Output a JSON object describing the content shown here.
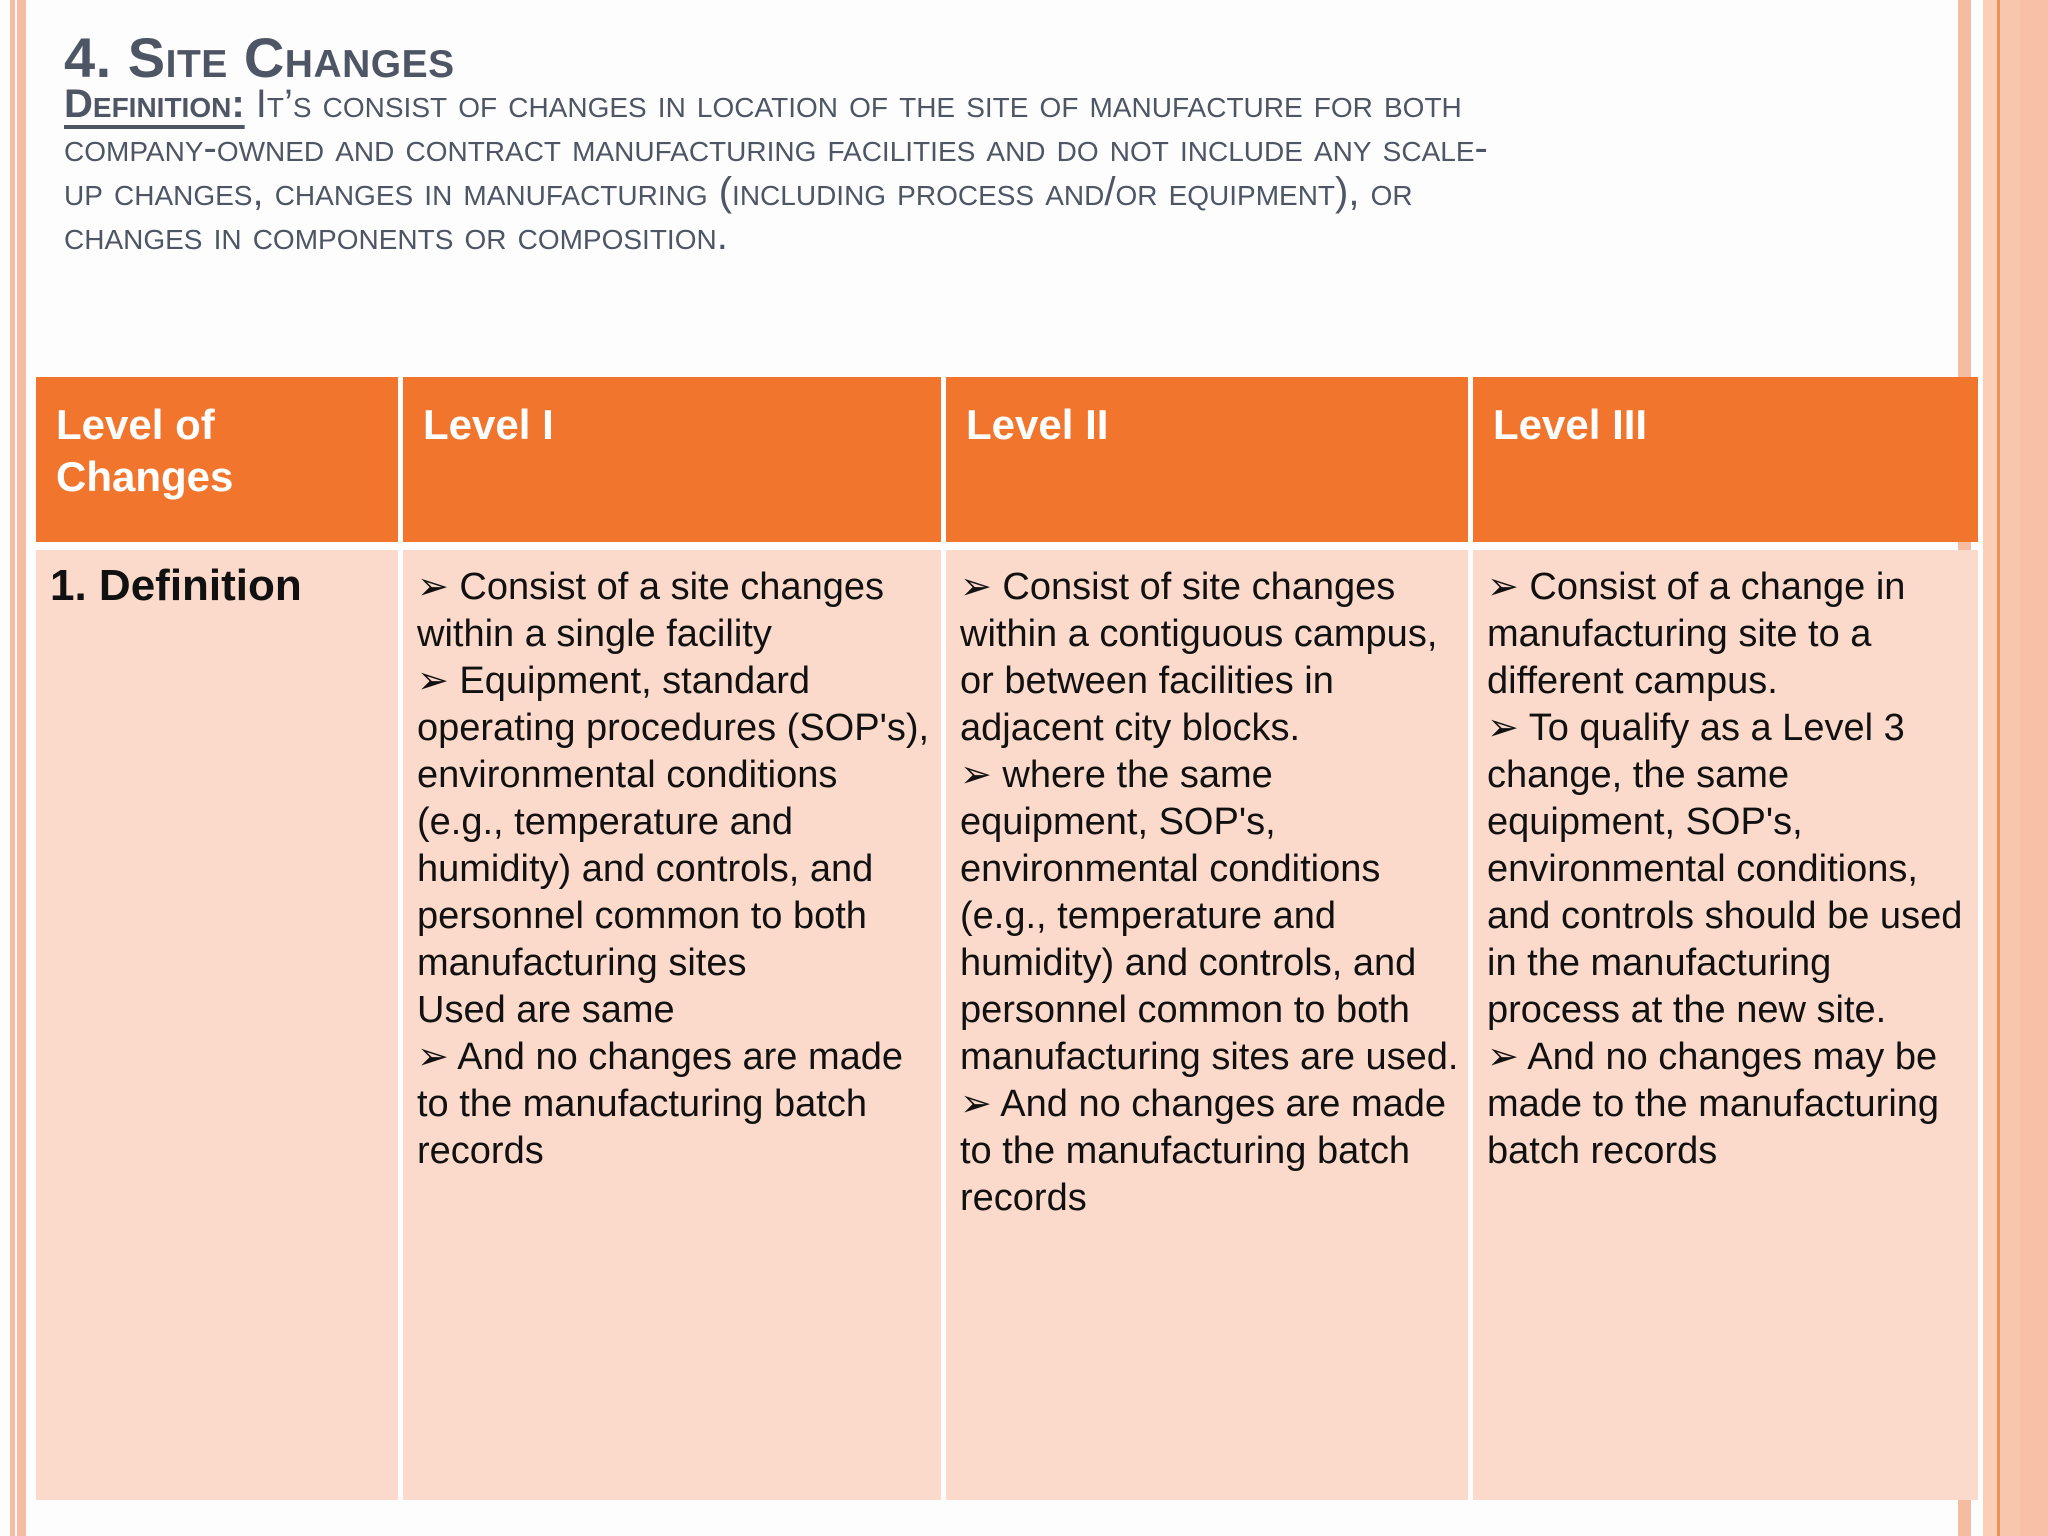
{
  "slide": {
    "title": "4. Site Changes",
    "definition_label": "Definition:",
    "definition_text": " It’s consist of changes in location of the site of manufacture for both company-owned and contract manufacturing facilities and do not include any scale-up changes, changes in manufacturing (including process and/or equipment), or changes in components or composition."
  },
  "table": {
    "headers": [
      "Level of Changes",
      "Level I",
      "Level II",
      "Level III"
    ],
    "row_label": "1. Definition",
    "bullet_char": "➢",
    "cells": [
      {
        "level": "Level I",
        "items": [
          "➢ Consist of a site changes within a single facility",
          "➢ Equipment, standard operating procedures (SOP's), environmental conditions (e.g., temperature and humidity) and controls, and personnel common to both manufacturing sites",
          "Used are same",
          "➢ And no changes are made to the manufacturing batch records"
        ]
      },
      {
        "level": "Level II",
        "items": [
          "➢ Consist of site changes within a contiguous campus, or between facilities in adjacent city blocks.",
          "➢ where the same equipment, SOP's, environmental conditions (e.g., temperature and humidity) and controls, and personnel common to both manufacturing sites are used.",
          "➢ And no changes are made to the manufacturing batch records"
        ]
      },
      {
        "level": "Level III",
        "items": [
          "➢ Consist of a change in manufacturing site to a different campus.",
          "➢ To qualify as a Level 3 change, the same equipment, SOP's, environmental conditions, and controls should be used in the manufacturing process at the new site.",
          "➢ And no changes may be made to the manufacturing batch records"
        ]
      }
    ]
  },
  "colors": {
    "header_orange": "#F2752D",
    "body_pink": "#FBD9CB",
    "stripe_salmon": "#F6BCA2",
    "band_salmon": "#F8C5AD",
    "band_accent_line": "#EE9254",
    "heading_text": "#4E5565",
    "body_text": "#111111",
    "header_text": "#FFFFFF"
  }
}
